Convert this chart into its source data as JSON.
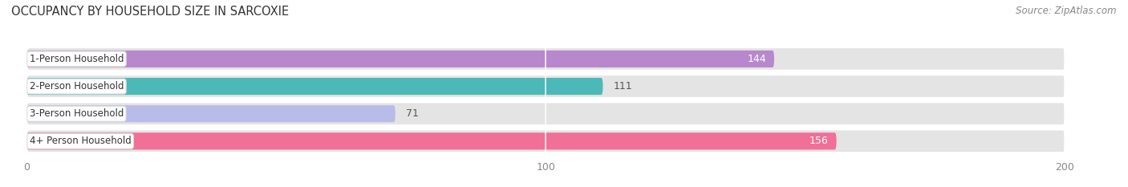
{
  "title": "OCCUPANCY BY HOUSEHOLD SIZE IN SARCOXIE",
  "source": "Source: ZipAtlas.com",
  "categories": [
    "1-Person Household",
    "2-Person Household",
    "3-Person Household",
    "4+ Person Household"
  ],
  "values": [
    144,
    111,
    71,
    156
  ],
  "bar_colors": [
    "#b888cc",
    "#4db8b8",
    "#b8bce8",
    "#f07098"
  ],
  "value_text_color": [
    "white",
    "#555555",
    "#555555",
    "white"
  ],
  "value_inside": [
    true,
    false,
    false,
    true
  ],
  "bar_bg_color": "#e4e4e4",
  "xlim": [
    -3,
    210
  ],
  "xticks": [
    0,
    100,
    200
  ],
  "title_fontsize": 10.5,
  "source_fontsize": 8.5,
  "tick_fontsize": 9,
  "bar_label_fontsize": 9,
  "category_fontsize": 8.5,
  "figsize": [
    14.06,
    2.33
  ],
  "dpi": 100,
  "background_color": "#ffffff"
}
